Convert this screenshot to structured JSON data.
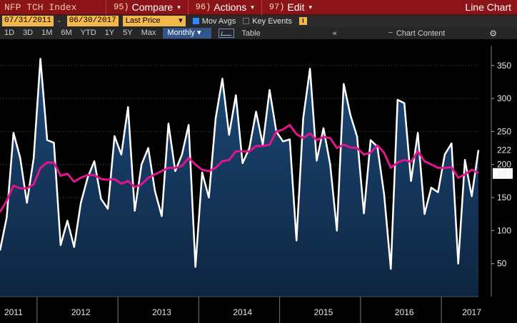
{
  "header": {
    "security": "NFP TCH Index",
    "menus": [
      {
        "num": "95)",
        "label": "Compare",
        "caret": "▾"
      },
      {
        "num": "96)",
        "label": "Actions",
        "caret": "▾"
      },
      {
        "num": "97)",
        "label": "Edit",
        "caret": "▾"
      }
    ],
    "chart_kind": "Line Chart"
  },
  "options": {
    "start_date": "07/31/2011",
    "end_date": "06/30/2017",
    "dash": "-",
    "field": "Last Price",
    "field_caret": "▾",
    "mov_avgs": "Mov Avgs",
    "key_events": "Key Events",
    "info_icon": "i"
  },
  "toolbar": {
    "periods": [
      "1D",
      "3D",
      "1M",
      "6M",
      "YTD",
      "1Y",
      "5Y",
      "Max"
    ],
    "frequency": "Monthly",
    "frequency_caret": "▾",
    "table": "Table",
    "collapse": "«",
    "chart_content": "Chart Content",
    "gear": "⚙"
  },
  "colors": {
    "price_line": "#ffffff",
    "mov_avg_line": "#e0168f",
    "area_fill_top": "#1e4a7a",
    "area_fill_bottom": "#0d2540",
    "grid": "#5a5a5a",
    "last_label_bg": "#000000",
    "mov_label_bg": "#ffffff",
    "mov_label_text": "#e0168f"
  },
  "chart_data": {
    "type": "line",
    "x_start": "2011-07",
    "x_end": "2017-06",
    "ylim": [
      0,
      380
    ],
    "yticks": [
      50,
      100,
      150,
      200,
      250,
      300,
      350
    ],
    "year_labels": [
      "2011",
      "2012",
      "2013",
      "2014",
      "2015",
      "2016",
      "2017"
    ],
    "year_label_months": [
      2,
      12,
      24,
      36,
      48,
      60,
      70
    ],
    "year_dividers": [
      5,
      17,
      29,
      41,
      53,
      65
    ],
    "last_value": "222",
    "mov_avg_last": "187",
    "series": [
      {
        "values": [
          70,
          120,
          248,
          210,
          142,
          210,
          360,
          237,
          233,
          78,
          115,
          75,
          142,
          180,
          205,
          148,
          133,
          243,
          215,
          287,
          130,
          200,
          225,
          160,
          122,
          262,
          190,
          215,
          260,
          45,
          188,
          150,
          270,
          330,
          245,
          305,
          202,
          225,
          280,
          230,
          313,
          250,
          235,
          238,
          85,
          270,
          345,
          206,
          255,
          200,
          100,
          322,
          275,
          242,
          126,
          237,
          227,
          155,
          42,
          298,
          293,
          175,
          248,
          125,
          165,
          158,
          215,
          232,
          50,
          207,
          152,
          222
        ]
      },
      {
        "values": [
          128,
          145,
          168,
          164,
          164,
          170,
          195,
          203,
          203,
          183,
          186,
          174,
          180,
          184,
          184,
          178,
          177,
          178,
          171,
          175,
          166,
          170,
          180,
          185,
          190,
          195,
          195,
          198,
          210,
          200,
          192,
          190,
          195,
          205,
          207,
          220,
          220,
          220,
          228,
          228,
          230,
          250,
          253,
          260,
          246,
          240,
          247,
          237,
          242,
          240,
          225,
          230,
          226,
          225,
          215,
          218,
          229,
          218,
          195,
          203,
          207,
          204,
          220,
          205,
          200,
          195,
          195,
          196,
          180,
          185,
          192,
          187
        ]
      }
    ]
  }
}
